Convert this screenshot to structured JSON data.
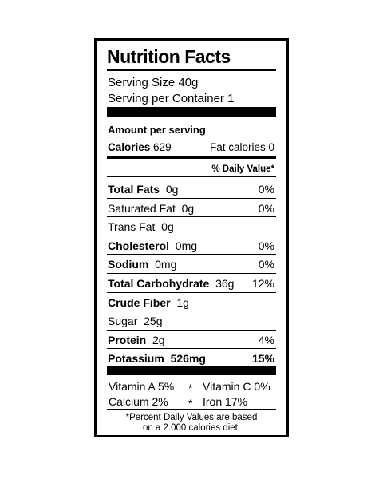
{
  "header": {
    "title": "Nutrition Facts",
    "serving_size": "Serving Size 40g",
    "servings": "Serving per Container 1"
  },
  "amount": {
    "heading": "Amount per serving",
    "calories_label": "Calories",
    "calories_value": "629",
    "fat_calories": "Fat calories 0",
    "daily_value_heading": "% Daily Value*"
  },
  "rows": [
    {
      "name": "Total Fats",
      "amount": "0g",
      "dv": "0%",
      "bold": true
    },
    {
      "name": "Saturated Fat",
      "amount": "0g",
      "dv": "0%",
      "bold": false
    },
    {
      "name": "Trans Fat",
      "amount": "0g",
      "bold": false
    },
    {
      "name": "Cholesterol",
      "amount": "0mg",
      "dv": "0%",
      "bold": true
    },
    {
      "name": "Sodium",
      "amount": "0mg",
      "dv": "0%",
      "bold": true
    },
    {
      "name": "Total Carbohydrate",
      "amount": "36g",
      "dv": "12%",
      "bold": true
    },
    {
      "name": "Crude Fiber",
      "amount": "1g",
      "bold": true
    },
    {
      "name": "Sugar",
      "amount": "25g",
      "bold": false
    },
    {
      "name": "Protein",
      "amount": "2g",
      "dv": "4%",
      "bold": true
    },
    {
      "name": "Potassium",
      "amount": "526mg",
      "dv": "15%",
      "bold": true,
      "all_bold": true
    }
  ],
  "vitamins": {
    "separator": "*",
    "lines": [
      [
        "Vitamin A 5%",
        "Vitamin C 0%"
      ],
      [
        "Calcium 2%",
        "Iron 17%"
      ]
    ]
  },
  "footnote": [
    "*Percent Daily Values are based",
    "on a 2.000 calories diet."
  ]
}
